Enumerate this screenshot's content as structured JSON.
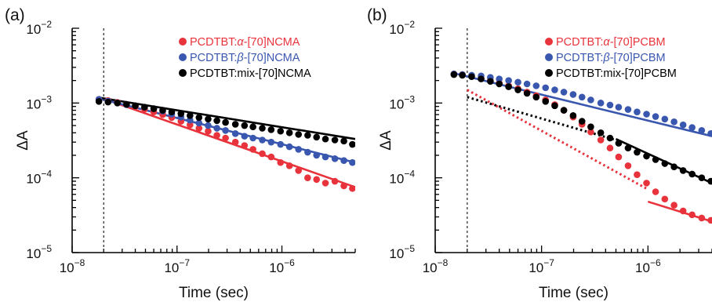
{
  "chart_data": [
    {
      "type": "scatter",
      "panel_label": "(a)",
      "xlabel": "Time (sec)",
      "ylabel": "ΔA",
      "xscale": "log",
      "yscale": "log",
      "xlim": [
        1e-08,
        5e-06
      ],
      "ylim": [
        1e-05,
        0.01
      ],
      "x_ticks": [
        {
          "value": 1e-08,
          "base": "10",
          "exp": "−8"
        },
        {
          "value": 1e-07,
          "base": "10",
          "exp": "−7"
        },
        {
          "value": 1e-06,
          "base": "10",
          "exp": "−6"
        }
      ],
      "y_ticks": [
        {
          "value": 1e-05,
          "base": "10",
          "exp": "−5"
        },
        {
          "value": 0.0001,
          "base": "10",
          "exp": "−4"
        },
        {
          "value": 0.001,
          "base": "10",
          "exp": "−3"
        },
        {
          "value": 0.01,
          "base": "10",
          "exp": "−2"
        }
      ],
      "vline": 2e-08,
      "legend_position": "top-right",
      "series": [
        {
          "name_parts": [
            "PCDTBT:",
            "α",
            "-[70]NCMA"
          ],
          "color": "#e8333c",
          "points": [
            [
              1.8e-08,
              0.00112
            ],
            [
              2.2e-08,
              0.00108
            ],
            [
              2.7e-08,
              0.00102
            ],
            [
              3.3e-08,
              0.00096
            ],
            [
              4e-08,
              0.0009
            ],
            [
              4.9e-08,
              0.00083
            ],
            [
              6e-08,
              0.00076
            ],
            [
              7.3e-08,
              0.0007
            ],
            [
              8.9e-08,
              0.00064
            ],
            [
              1.09e-07,
              0.00057
            ],
            [
              1.33e-07,
              0.00051
            ],
            [
              1.62e-07,
              0.00046
            ],
            [
              1.98e-07,
              0.00042
            ],
            [
              2.4e-07,
              0.00037
            ],
            [
              2.9e-07,
              0.00034
            ],
            [
              3.6e-07,
              0.0003
            ],
            [
              4.4e-07,
              0.00027
            ],
            [
              5.3e-07,
              0.00024
            ],
            [
              6.5e-07,
              0.00021
            ],
            [
              7.9e-07,
              0.00019
            ],
            [
              9.7e-07,
              0.00016
            ],
            [
              1.18e-06,
              0.000145
            ],
            [
              1.44e-06,
              0.000125
            ],
            [
              1.76e-06,
              0.0001
            ],
            [
              2.14e-06,
              9.5e-05
            ],
            [
              2.6e-06,
              8.5e-05
            ],
            [
              3.2e-06,
              9e-05
            ],
            [
              3.9e-06,
              7.8e-05
            ],
            [
              4.7e-06,
              7.2e-05
            ]
          ],
          "fit": [
            [
              1.8e-08,
              0.0012
            ],
            [
              5e-06,
              7.5e-05
            ]
          ],
          "fit_style": "solid"
        },
        {
          "name_parts": [
            "PCDTBT:",
            "β",
            "-[70]NCMA"
          ],
          "color": "#3a57b0",
          "points": [
            [
              1.8e-08,
              0.00112
            ],
            [
              2.2e-08,
              0.00106
            ],
            [
              2.7e-08,
              0.001
            ],
            [
              3.3e-08,
              0.00095
            ],
            [
              4e-08,
              0.00092
            ],
            [
              4.9e-08,
              0.00088
            ],
            [
              6e-08,
              0.00084
            ],
            [
              7.3e-08,
              0.00078
            ],
            [
              8.9e-08,
              0.00071
            ],
            [
              1.09e-07,
              0.00065
            ],
            [
              1.33e-07,
              0.00059
            ],
            [
              1.62e-07,
              0.00054
            ],
            [
              1.98e-07,
              0.0005
            ],
            [
              2.4e-07,
              0.00046
            ],
            [
              2.9e-07,
              0.00043
            ],
            [
              3.6e-07,
              0.00039
            ],
            [
              4.4e-07,
              0.00036
            ],
            [
              5.3e-07,
              0.00034
            ],
            [
              6.5e-07,
              0.00032
            ],
            [
              7.9e-07,
              0.0003
            ],
            [
              9.7e-07,
              0.00028
            ],
            [
              1.18e-06,
              0.00026
            ],
            [
              1.44e-06,
              0.00024
            ],
            [
              1.76e-06,
              0.00022
            ],
            [
              2.14e-06,
              0.0002
            ],
            [
              2.6e-06,
              0.00019
            ],
            [
              3.2e-06,
              0.00018
            ],
            [
              3.9e-06,
              0.00017
            ],
            [
              4.7e-06,
              0.00016
            ]
          ],
          "fit": [
            [
              1.8e-08,
              0.00115
            ],
            [
              5e-06,
              0.00016
            ]
          ],
          "fit_style": "solid"
        },
        {
          "name_parts": [
            "PCDTBT:mix-[70]NCMA"
          ],
          "color": "#000000",
          "points": [
            [
              1.8e-08,
              0.00105
            ],
            [
              2.2e-08,
              0.00103
            ],
            [
              2.7e-08,
              0.001
            ],
            [
              3.3e-08,
              0.00096
            ],
            [
              4e-08,
              0.00092
            ],
            [
              4.9e-08,
              0.00088
            ],
            [
              6e-08,
              0.00084
            ],
            [
              7.3e-08,
              0.0008
            ],
            [
              8.9e-08,
              0.00076
            ],
            [
              1.09e-07,
              0.00072
            ],
            [
              1.33e-07,
              0.00068
            ],
            [
              1.62e-07,
              0.00064
            ],
            [
              1.98e-07,
              0.00061
            ],
            [
              2.4e-07,
              0.00058
            ],
            [
              2.9e-07,
              0.00055
            ],
            [
              3.6e-07,
              0.00052
            ],
            [
              4.4e-07,
              0.0005
            ],
            [
              5.3e-07,
              0.00048
            ],
            [
              6.5e-07,
              0.00046
            ],
            [
              7.9e-07,
              0.00044
            ],
            [
              9.7e-07,
              0.00042
            ],
            [
              1.18e-06,
              0.0004
            ],
            [
              1.44e-06,
              0.00038
            ],
            [
              1.76e-06,
              0.00037
            ],
            [
              2.14e-06,
              0.00035
            ],
            [
              2.6e-06,
              0.00033
            ],
            [
              3.2e-06,
              0.00032
            ],
            [
              3.9e-06,
              0.00031
            ],
            [
              4.7e-06,
              0.00028
            ]
          ],
          "fit": [
            [
              1.8e-08,
              0.00118
            ],
            [
              5e-06,
              0.00033
            ]
          ],
          "fit_style": "solid"
        }
      ]
    },
    {
      "type": "scatter",
      "panel_label": "(b)",
      "xlabel": "Time (sec)",
      "ylabel": "ΔA",
      "xscale": "log",
      "yscale": "log",
      "xlim": [
        1e-08,
        4e-06
      ],
      "ylim": [
        1e-05,
        0.01
      ],
      "x_ticks": [
        {
          "value": 1e-08,
          "base": "10",
          "exp": "−8"
        },
        {
          "value": 1e-07,
          "base": "10",
          "exp": "−7"
        },
        {
          "value": 1e-06,
          "base": "10",
          "exp": "−6"
        }
      ],
      "y_ticks": [
        {
          "value": 1e-05,
          "base": "10",
          "exp": "−5"
        },
        {
          "value": 0.0001,
          "base": "10",
          "exp": "−4"
        },
        {
          "value": 0.001,
          "base": "10",
          "exp": "−3"
        },
        {
          "value": 0.01,
          "base": "10",
          "exp": "−2"
        }
      ],
      "vline": 2e-08,
      "legend_position": "top-right",
      "series": [
        {
          "name_parts": [
            "PCDTBT:",
            "α",
            "-[70]PCBM"
          ],
          "color": "#e8333c",
          "points": [
            [
              1.5e-08,
              0.00245
            ],
            [
              1.8e-08,
              0.0024
            ],
            [
              2.2e-08,
              0.0023
            ],
            [
              2.7e-08,
              0.00215
            ],
            [
              3.3e-08,
              0.002
            ],
            [
              4e-08,
              0.00185
            ],
            [
              4.9e-08,
              0.0017
            ],
            [
              6e-08,
              0.00155
            ],
            [
              7.3e-08,
              0.0014
            ],
            [
              8.9e-08,
              0.00125
            ],
            [
              1.09e-07,
              0.0011
            ],
            [
              1.33e-07,
              0.00095
            ],
            [
              1.62e-07,
              0.0008
            ],
            [
              1.98e-07,
              0.00065
            ],
            [
              2.4e-07,
              0.00052
            ],
            [
              2.9e-07,
              0.00041
            ],
            [
              3.6e-07,
              0.00032
            ],
            [
              4.4e-07,
              0.00025
            ],
            [
              5.3e-07,
              0.00019
            ],
            [
              6.5e-07,
              0.000145
            ],
            [
              7.9e-07,
              0.00011
            ],
            [
              9.7e-07,
              8.5e-05
            ],
            [
              1.18e-06,
              6.5e-05
            ],
            [
              1.44e-06,
              5.2e-05
            ],
            [
              1.76e-06,
              4.3e-05
            ],
            [
              2.14e-06,
              3.6e-05
            ],
            [
              2.6e-06,
              3.2e-05
            ],
            [
              3.2e-06,
              2.9e-05
            ],
            [
              3.9e-06,
              2.7e-05
            ]
          ],
          "fit": [
            [
              2e-08,
              0.0015
            ],
            [
              1e-06,
              7e-05
            ]
          ],
          "fit_style": "dotted",
          "fit2": [
            [
              1e-06,
              4.8e-05
            ],
            [
              4e-06,
              2.6e-05
            ]
          ]
        },
        {
          "name_parts": [
            "PCDTBT:",
            "β",
            "-[70]PCBM"
          ],
          "color": "#3a57b0",
          "points": [
            [
              1.5e-08,
              0.00245
            ],
            [
              1.8e-08,
              0.0024
            ],
            [
              2.2e-08,
              0.00235
            ],
            [
              2.7e-08,
              0.0023
            ],
            [
              3.3e-08,
              0.0022
            ],
            [
              4e-08,
              0.0021
            ],
            [
              4.9e-08,
              0.002
            ],
            [
              6e-08,
              0.0019
            ],
            [
              7.3e-08,
              0.0018
            ],
            [
              8.9e-08,
              0.0017
            ],
            [
              1.09e-07,
              0.0016
            ],
            [
              1.33e-07,
              0.0015
            ],
            [
              1.62e-07,
              0.0014
            ],
            [
              1.98e-07,
              0.0013
            ],
            [
              2.4e-07,
              0.0012
            ],
            [
              2.9e-07,
              0.0011
            ],
            [
              3.6e-07,
              0.001
            ],
            [
              4.4e-07,
              0.00094
            ],
            [
              5.3e-07,
              0.00088
            ],
            [
              6.5e-07,
              0.00082
            ],
            [
              7.9e-07,
              0.00076
            ],
            [
              9.7e-07,
              0.00071
            ],
            [
              1.18e-06,
              0.00066
            ],
            [
              1.44e-06,
              0.00061
            ],
            [
              1.76e-06,
              0.00056
            ],
            [
              2.14e-06,
              0.00051
            ],
            [
              2.6e-06,
              0.00047
            ],
            [
              3.2e-06,
              0.00043
            ],
            [
              3.9e-06,
              0.00039
            ]
          ],
          "fit": [
            [
              1.5e-08,
              0.0025
            ],
            [
              4e-06,
              0.00036
            ]
          ],
          "fit_style": "solid"
        },
        {
          "name_parts": [
            "PCDTBT:mix-[70]PCBM"
          ],
          "color": "#000000",
          "points": [
            [
              1.5e-08,
              0.0024
            ],
            [
              1.8e-08,
              0.00235
            ],
            [
              2.2e-08,
              0.00225
            ],
            [
              2.7e-08,
              0.0021
            ],
            [
              3.3e-08,
              0.00195
            ],
            [
              4e-08,
              0.0018
            ],
            [
              4.9e-08,
              0.00165
            ],
            [
              6e-08,
              0.0015
            ],
            [
              7.3e-08,
              0.00135
            ],
            [
              8.9e-08,
              0.0012
            ],
            [
              1.09e-07,
              0.00105
            ],
            [
              1.33e-07,
              0.00092
            ],
            [
              1.62e-07,
              0.0008
            ],
            [
              1.98e-07,
              0.00068
            ],
            [
              2.4e-07,
              0.00057
            ],
            [
              2.9e-07,
              0.00048
            ],
            [
              3.6e-07,
              0.0004
            ],
            [
              4.4e-07,
              0.00034
            ],
            [
              5.3e-07,
              0.00029
            ],
            [
              6.5e-07,
              0.00025
            ],
            [
              7.9e-07,
              0.00022
            ],
            [
              9.7e-07,
              0.000195
            ],
            [
              1.18e-06,
              0.000175
            ],
            [
              1.44e-06,
              0.000155
            ],
            [
              1.76e-06,
              0.00014
            ],
            [
              2.14e-06,
              0.000125
            ],
            [
              2.6e-06,
              0.000112
            ],
            [
              3.2e-06,
              0.0001
            ],
            [
              3.9e-06,
              9e-05
            ]
          ],
          "fit": [
            [
              2e-08,
              0.0012
            ],
            [
              5e-07,
              0.00032
            ]
          ],
          "fit_style": "dotted",
          "fit2": [
            [
              5e-07,
              0.00033
            ],
            [
              4e-06,
              8.5e-05
            ]
          ]
        }
      ]
    }
  ]
}
